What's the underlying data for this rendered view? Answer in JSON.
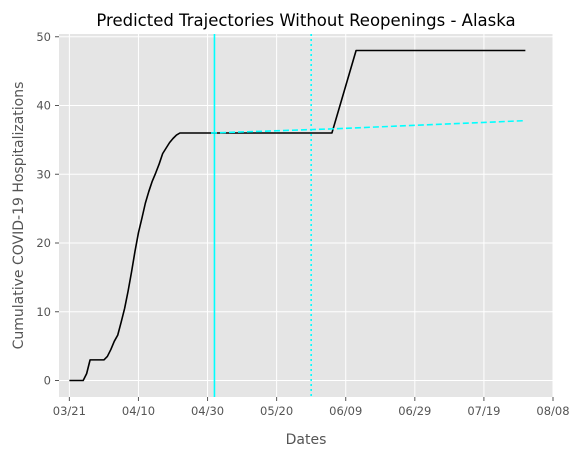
{
  "chart_data": {
    "type": "line",
    "title": "Predicted Trajectories Without Reopenings - Alaska",
    "xlabel": "Dates",
    "ylabel": "Cumulative COVID-19 Hospitalizations",
    "grid": true,
    "x_axis": {
      "type": "date",
      "range": [
        "2020-03-18",
        "2020-08-08"
      ],
      "ticks": [
        {
          "date": "2020-03-21",
          "label": "03/21"
        },
        {
          "date": "2020-04-10",
          "label": "04/10"
        },
        {
          "date": "2020-04-30",
          "label": "04/30"
        },
        {
          "date": "2020-05-20",
          "label": "05/20"
        },
        {
          "date": "2020-06-09",
          "label": "06/09"
        },
        {
          "date": "2020-06-29",
          "label": "06/29"
        },
        {
          "date": "2020-07-19",
          "label": "07/19"
        },
        {
          "date": "2020-08-08",
          "label": "08/08"
        }
      ]
    },
    "y_axis": {
      "range": [
        -2.4,
        50.4
      ],
      "ticks": [
        {
          "value": 0,
          "label": "0"
        },
        {
          "value": 10,
          "label": "10"
        },
        {
          "value": 20,
          "label": "20"
        },
        {
          "value": 30,
          "label": "30"
        },
        {
          "value": 40,
          "label": "40"
        },
        {
          "value": 50,
          "label": "50"
        }
      ]
    },
    "series": [
      {
        "style": "solid",
        "color": "#000000",
        "points": [
          [
            "2020-03-21",
            0
          ],
          [
            "2020-03-25",
            0
          ],
          [
            "2020-03-26",
            1
          ],
          [
            "2020-03-27",
            3
          ],
          [
            "2020-03-30",
            3
          ],
          [
            "2020-03-31",
            3
          ],
          [
            "2020-04-01",
            3.5
          ],
          [
            "2020-04-02",
            4.5
          ],
          [
            "2020-04-03",
            5.7
          ],
          [
            "2020-04-04",
            6.6
          ],
          [
            "2020-04-05",
            8.5
          ],
          [
            "2020-04-06",
            10.5
          ],
          [
            "2020-04-07",
            13
          ],
          [
            "2020-04-08",
            15.8
          ],
          [
            "2020-04-09",
            18.8
          ],
          [
            "2020-04-10",
            21.5
          ],
          [
            "2020-04-11",
            23.6
          ],
          [
            "2020-04-12",
            25.8
          ],
          [
            "2020-04-13",
            27.5
          ],
          [
            "2020-04-14",
            29
          ],
          [
            "2020-04-15",
            30.2
          ],
          [
            "2020-04-16",
            31.5
          ],
          [
            "2020-04-17",
            33
          ],
          [
            "2020-04-18",
            33.8
          ],
          [
            "2020-04-19",
            34.6
          ],
          [
            "2020-04-20",
            35.2
          ],
          [
            "2020-04-21",
            35.7
          ],
          [
            "2020-04-22",
            36
          ],
          [
            "2020-04-23",
            36
          ],
          [
            "2020-05-01",
            36
          ],
          [
            "2020-06-05",
            36
          ],
          [
            "2020-06-12",
            48
          ],
          [
            "2020-07-31",
            48
          ]
        ]
      },
      {
        "style": "dashed",
        "color": "#00ffff",
        "points": [
          [
            "2020-05-01",
            36
          ],
          [
            "2020-06-05",
            36.6
          ],
          [
            "2020-07-31",
            37.8
          ]
        ]
      }
    ],
    "vertical_lines": [
      {
        "date": "2020-05-02",
        "style": "solid",
        "color": "#00ffff"
      },
      {
        "date": "2020-05-30",
        "style": "dotted",
        "color": "#00ffff"
      }
    ]
  }
}
